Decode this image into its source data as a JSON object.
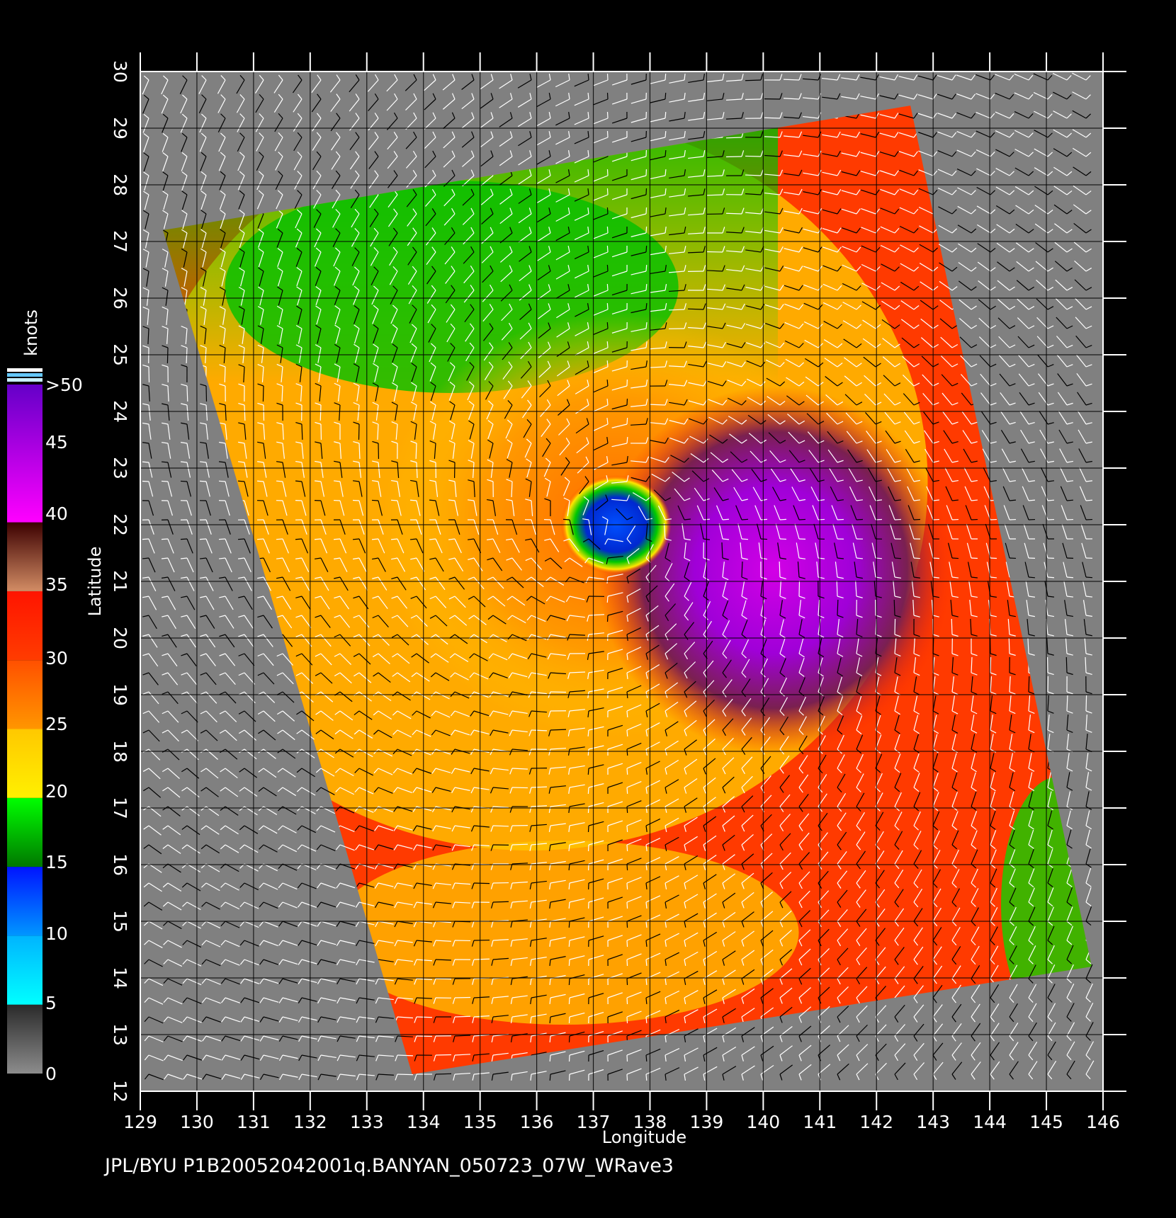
{
  "caption": "JPL/BYU  P1B20052042001q.BANYAN_050723_07W_WRave3",
  "colorbar": {
    "unit_label": "knots",
    "top_label": ">50",
    "labels": [
      "0",
      "5",
      "10",
      "15",
      "20",
      "25",
      "30",
      "35",
      "40",
      "45"
    ],
    "segments": [
      {
        "from": 0,
        "to": 5,
        "colors": [
          "#8c8c8c",
          "#2a2a2a"
        ]
      },
      {
        "from": 5,
        "to": 10,
        "colors": [
          "#00ffff",
          "#00b4ff"
        ]
      },
      {
        "from": 10,
        "to": 15,
        "colors": [
          "#0096ff",
          "#0014ff"
        ]
      },
      {
        "from": 15,
        "to": 20,
        "colors": [
          "#007800",
          "#00ff00"
        ]
      },
      {
        "from": 20,
        "to": 25,
        "colors": [
          "#fff000",
          "#ffc800"
        ]
      },
      {
        "from": 25,
        "to": 30,
        "colors": [
          "#ff9600",
          "#ff5000"
        ]
      },
      {
        "from": 30,
        "to": 35,
        "colors": [
          "#ff3c00",
          "#ff1400"
        ]
      },
      {
        "from": 35,
        "to": 40,
        "colors": [
          "#d28c64",
          "#3c0000"
        ]
      },
      {
        "from": 40,
        "to": 50,
        "colors": [
          "#ff00ff",
          "#6400c8"
        ]
      }
    ],
    "top_stripes": [
      "#ffffff",
      "#64c8ff",
      "#c8f0ff"
    ]
  },
  "map": {
    "xlabel": "Longitude",
    "ylabel": "Latitude",
    "lon_range": [
      129,
      146
    ],
    "lat_range": [
      12,
      30
    ],
    "lon_ticks": [
      129,
      130,
      131,
      132,
      133,
      134,
      135,
      136,
      137,
      138,
      139,
      140,
      141,
      142,
      143,
      144,
      145,
      146
    ],
    "lat_ticks": [
      12,
      13,
      14,
      15,
      16,
      17,
      18,
      19,
      20,
      21,
      22,
      23,
      24,
      25,
      26,
      27,
      28,
      29,
      30
    ],
    "background_color": "#808080",
    "swath_corners_lonlat": [
      [
        129.4,
        27.2
      ],
      [
        142.6,
        29.4
      ],
      [
        145.8,
        14.2
      ],
      [
        133.8,
        12.3
      ]
    ],
    "storm_eye_lonlat": [
      137.4,
      22.0
    ],
    "max_wind_region_lonlat": [
      140.2,
      21.2
    ]
  }
}
